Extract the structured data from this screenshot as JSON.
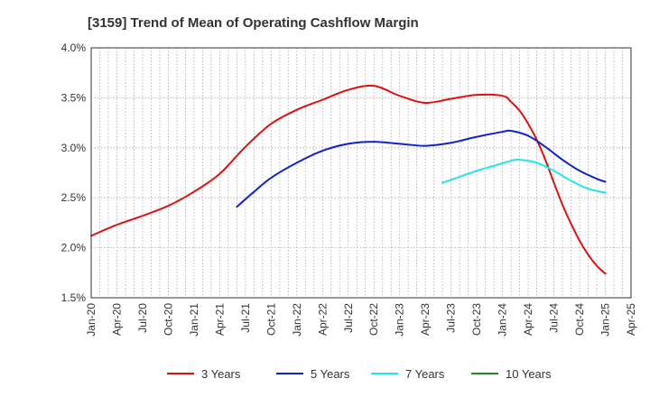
{
  "chart_data": {
    "type": "line",
    "title": "[3159]  Trend of Mean of Operating Cashflow Margin",
    "xlabel": "",
    "ylabel": "",
    "y_unit": "%",
    "ylim": [
      1.5,
      4.0
    ],
    "y_ticks": [
      1.5,
      2.0,
      2.5,
      3.0,
      3.5,
      4.0
    ],
    "y_tick_labels": [
      "1.5%",
      "2.0%",
      "2.5%",
      "3.0%",
      "3.5%",
      "4.0%"
    ],
    "x_ticks": [
      "Jan-20",
      "Apr-20",
      "Jul-20",
      "Oct-20",
      "Jan-21",
      "Apr-21",
      "Jul-21",
      "Oct-21",
      "Jan-22",
      "Apr-22",
      "Jul-22",
      "Oct-22",
      "Jan-23",
      "Apr-23",
      "Jul-23",
      "Oct-23",
      "Jan-24",
      "Apr-24",
      "Jul-24",
      "Oct-24",
      "Jan-25",
      "Apr-25"
    ],
    "grid": true,
    "legend_position": "bottom",
    "series": [
      {
        "name": "3 Years",
        "color": "#dd1111",
        "points": [
          [
            "Jan-20",
            2.12
          ],
          [
            "Apr-20",
            2.23
          ],
          [
            "Jul-20",
            2.32
          ],
          [
            "Oct-20",
            2.42
          ],
          [
            "Jan-21",
            2.56
          ],
          [
            "Apr-21",
            2.74
          ],
          [
            "Jul-21",
            3.01
          ],
          [
            "Oct-21",
            3.24
          ],
          [
            "Jan-22",
            3.38
          ],
          [
            "Apr-22",
            3.48
          ],
          [
            "Jul-22",
            3.58
          ],
          [
            "Oct-22",
            3.62
          ],
          [
            "Jan-23",
            3.52
          ],
          [
            "Apr-23",
            3.45
          ],
          [
            "Jul-23",
            3.49
          ],
          [
            "Oct-23",
            3.53
          ],
          [
            "Jan-24",
            3.52
          ],
          [
            "Feb-24",
            3.46
          ],
          [
            "Mar-24",
            3.37
          ],
          [
            "Apr-24",
            3.24
          ],
          [
            "May-24",
            3.08
          ],
          [
            "Jun-24",
            2.88
          ],
          [
            "Jul-24",
            2.65
          ],
          [
            "Aug-24",
            2.43
          ],
          [
            "Sep-24",
            2.24
          ],
          [
            "Oct-24",
            2.07
          ],
          [
            "Nov-24",
            1.93
          ],
          [
            "Dec-24",
            1.82
          ],
          [
            "Jan-25",
            1.74
          ]
        ]
      },
      {
        "name": "5 Years",
        "color": "#1122cc",
        "points": [
          [
            "Jun-21",
            2.41
          ],
          [
            "Aug-21",
            2.56
          ],
          [
            "Oct-21",
            2.7
          ],
          [
            "Jan-22",
            2.85
          ],
          [
            "Apr-22",
            2.97
          ],
          [
            "Jul-22",
            3.04
          ],
          [
            "Oct-22",
            3.06
          ],
          [
            "Jan-23",
            3.04
          ],
          [
            "Apr-23",
            3.02
          ],
          [
            "Jul-23",
            3.05
          ],
          [
            "Oct-23",
            3.11
          ],
          [
            "Jan-24",
            3.16
          ],
          [
            "Feb-24",
            3.17
          ],
          [
            "Apr-24",
            3.12
          ],
          [
            "Jun-24",
            3.01
          ],
          [
            "Aug-24",
            2.88
          ],
          [
            "Oct-24",
            2.77
          ],
          [
            "Dec-24",
            2.69
          ],
          [
            "Jan-25",
            2.66
          ]
        ]
      },
      {
        "name": "7 Years",
        "color": "#22e6e6",
        "points": [
          [
            "Jun-23",
            2.65
          ],
          [
            "Aug-23",
            2.71
          ],
          [
            "Oct-23",
            2.77
          ],
          [
            "Dec-23",
            2.82
          ],
          [
            "Feb-24",
            2.87
          ],
          [
            "Mar-24",
            2.88
          ],
          [
            "May-24",
            2.85
          ],
          [
            "Jul-24",
            2.77
          ],
          [
            "Sep-24",
            2.67
          ],
          [
            "Nov-24",
            2.59
          ],
          [
            "Jan-25",
            2.55
          ]
        ]
      },
      {
        "name": "10 Years",
        "color": "#228822",
        "points": []
      }
    ]
  }
}
